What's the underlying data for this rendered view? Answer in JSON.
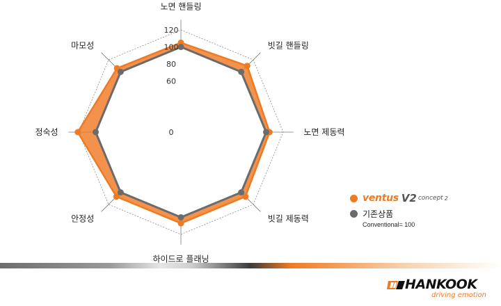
{
  "chart_data": {
    "type": "radar",
    "axes": [
      "노면 핸들링",
      "빗길 핸들링",
      "노면 제동력",
      "빗길 제동력",
      "하이드로 플래닝",
      "안정성",
      "정숙성",
      "마모성"
    ],
    "ticks": [
      0,
      60,
      80,
      100,
      120
    ],
    "range": [
      0,
      120
    ],
    "series": [
      {
        "name": "ventus V2 concept 2",
        "values": [
          105,
          110,
          104,
          107,
          107,
          107,
          121,
          106
        ],
        "color": "#ef7a24"
      },
      {
        "name": "기존상품",
        "values": [
          100,
          100,
          100,
          100,
          100,
          100,
          100,
          100
        ],
        "color": "#6b6b6b"
      }
    ],
    "grid": "dotted octagons"
  },
  "legend": {
    "brand_name": "ventus",
    "brand_model": "V2",
    "brand_sub": "concept",
    "brand_sup": "2",
    "existing_label": "기존상품",
    "note": "Conventional= 100"
  },
  "logo": {
    "name": "HANKOOK",
    "tagline": "driving emotion",
    "accent_color": "#ef7a24"
  }
}
